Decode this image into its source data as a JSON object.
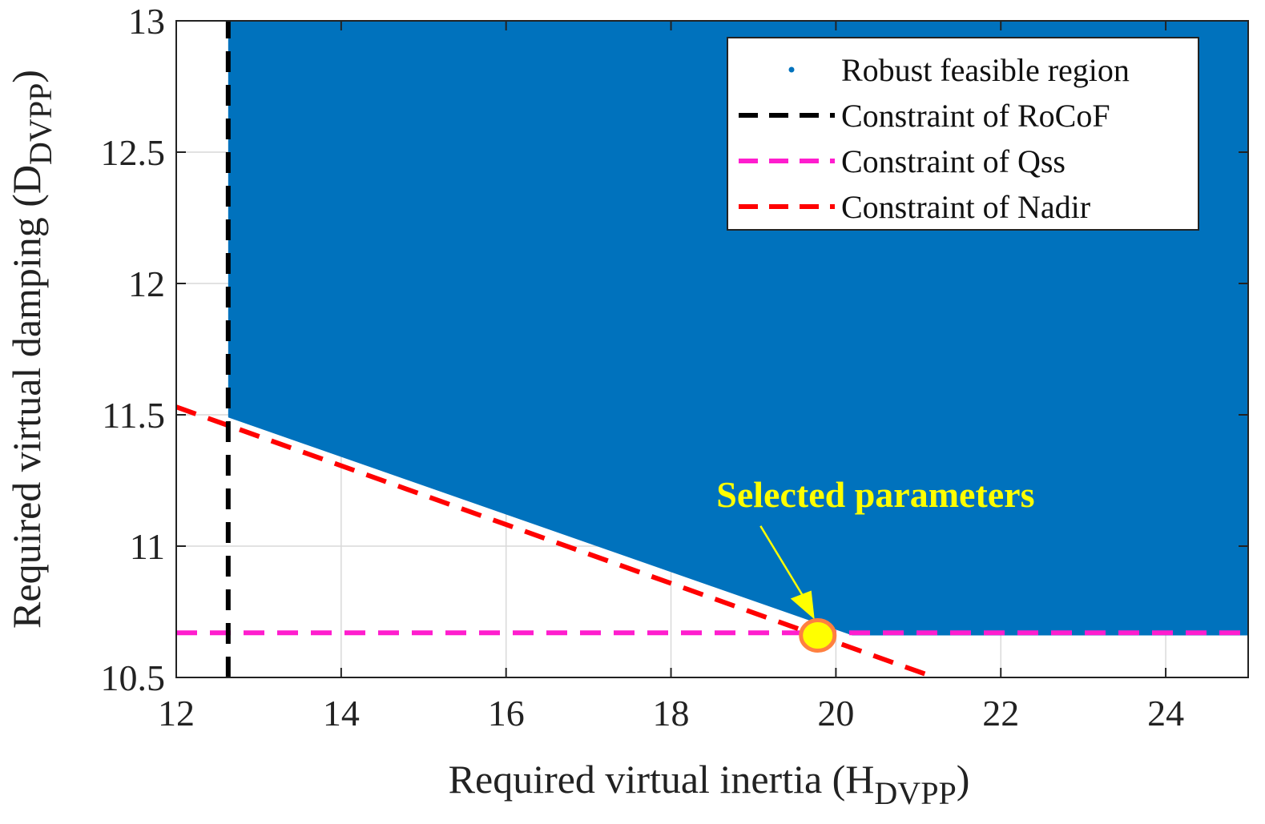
{
  "chart_data": {
    "type": "scatter",
    "title": "",
    "xlabel_main": "Required virtual inertia (H",
    "xlabel_sub": "DVPP",
    "xlabel_close": ")",
    "ylabel_main": "Required virtual damping (D",
    "ylabel_sub": "DVPP",
    "ylabel_close": ")",
    "xlim": [
      12,
      25
    ],
    "ylim": [
      10.5,
      13
    ],
    "x_ticks": [
      12,
      14,
      16,
      18,
      20,
      22,
      24
    ],
    "x_tick_labels": [
      "12",
      "14",
      "16",
      "18",
      "20",
      "22",
      "24"
    ],
    "y_ticks": [
      10.5,
      11,
      11.5,
      12,
      12.5,
      13
    ],
    "y_tick_labels": [
      "10.5",
      "11",
      "11.5",
      "12",
      "12.5",
      "13"
    ],
    "grid": true,
    "legend_position": "top-right",
    "series": [
      {
        "name": "Robust feasible region",
        "kind": "region",
        "color": "#0072BD",
        "polygon": [
          [
            12.63,
            13
          ],
          [
            25,
            13
          ],
          [
            25,
            10.66
          ],
          [
            20.2,
            10.66
          ],
          [
            12.63,
            11.49
          ]
        ]
      },
      {
        "name": "Constraint of RoCoF",
        "kind": "dashed-line",
        "color": "#000000",
        "points": [
          [
            12.63,
            10.5
          ],
          [
            12.63,
            13
          ]
        ]
      },
      {
        "name": "Constraint of Qss",
        "kind": "dashed-line",
        "color": "#ff1dce",
        "points": [
          [
            12,
            10.67
          ],
          [
            25,
            10.67
          ]
        ]
      },
      {
        "name": "Constraint of Nadir",
        "kind": "dashed-line",
        "color": "#ff0000",
        "points": [
          [
            12,
            11.53
          ],
          [
            21.2,
            10.5
          ]
        ]
      }
    ],
    "annotation": {
      "text": "Selected parameters",
      "color": "#ffff00",
      "point": [
        19.78,
        10.66
      ],
      "text_anchor_data": [
        18.6,
        11.15
      ],
      "marker_fill": "#ffff00",
      "marker_edge": "#ff8040"
    }
  }
}
